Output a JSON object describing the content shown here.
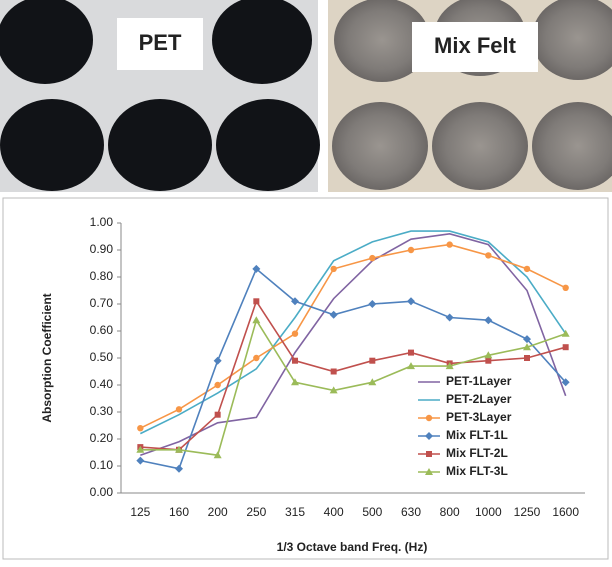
{
  "photos": {
    "left_label": "PET",
    "right_label": "Mix Felt"
  },
  "chart_data": {
    "type": "line",
    "ylabel": "Absorption Coefficient",
    "xlabel": "1/3 Octave band Freq. (Hz)",
    "categories": [
      "125",
      "160",
      "200",
      "250",
      "315",
      "400",
      "500",
      "630",
      "800",
      "1000",
      "1250",
      "1600"
    ],
    "ylim": [
      0,
      1
    ],
    "yticks": [
      {
        "value": 0,
        "label": "0.00"
      },
      {
        "value": 0.1,
        "label": "0.10"
      },
      {
        "value": 0.2,
        "label": "0.20"
      },
      {
        "value": 0.3,
        "label": "0.30"
      },
      {
        "value": 0.4,
        "label": "0.40"
      },
      {
        "value": 0.5,
        "label": "0.50"
      },
      {
        "value": 0.6,
        "label": "0.60"
      },
      {
        "value": 0.7,
        "label": "0.70"
      },
      {
        "value": 0.8,
        "label": "0.80"
      },
      {
        "value": 0.9,
        "label": "0.90"
      },
      {
        "value": 1,
        "label": "1.00"
      }
    ],
    "grid": false,
    "legend": "right",
    "series": [
      {
        "name": "PET-1Layer",
        "color": "#8064a2",
        "marker": "none",
        "values": [
          0.14,
          0.19,
          0.26,
          0.28,
          0.52,
          0.72,
          0.86,
          0.94,
          0.96,
          0.92,
          0.75,
          0.36
        ]
      },
      {
        "name": "PET-2Layer",
        "color": "#4bacc6",
        "marker": "none",
        "values": [
          0.22,
          0.29,
          0.37,
          0.46,
          0.65,
          0.86,
          0.93,
          0.97,
          0.97,
          0.93,
          0.8,
          0.59
        ]
      },
      {
        "name": "PET-3Layer",
        "color": "#f79646",
        "marker": "circle",
        "values": [
          0.24,
          0.31,
          0.4,
          0.5,
          0.59,
          0.83,
          0.87,
          0.9,
          0.92,
          0.88,
          0.83,
          0.76
        ]
      },
      {
        "name": "Mix FLT-1L",
        "color": "#4f81bd",
        "marker": "diamond",
        "values": [
          0.12,
          0.09,
          0.49,
          0.83,
          0.71,
          0.66,
          0.7,
          0.71,
          0.65,
          0.64,
          0.57,
          0.41
        ]
      },
      {
        "name": "Mix FLT-2L",
        "color": "#c0504d",
        "marker": "square",
        "values": [
          0.17,
          0.16,
          0.29,
          0.71,
          0.49,
          0.45,
          0.49,
          0.52,
          0.48,
          0.49,
          0.5,
          0.54
        ]
      },
      {
        "name": "Mix FLT-3L",
        "color": "#9bbb59",
        "marker": "triangle",
        "values": [
          0.16,
          0.16,
          0.14,
          0.64,
          0.41,
          0.38,
          0.41,
          0.47,
          0.47,
          0.51,
          0.54,
          0.59
        ]
      }
    ]
  }
}
